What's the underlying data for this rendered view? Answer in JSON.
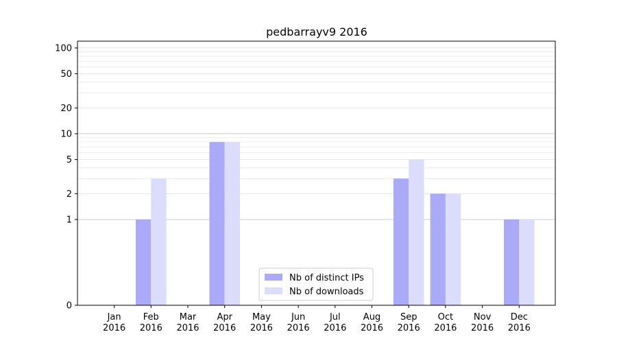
{
  "chart_data": {
    "type": "bar",
    "title": "pedbarrayv9 2016",
    "xlabel": "",
    "ylabel": "",
    "categories": [
      {
        "month": "Jan",
        "year": "2016"
      },
      {
        "month": "Feb",
        "year": "2016"
      },
      {
        "month": "Mar",
        "year": "2016"
      },
      {
        "month": "Apr",
        "year": "2016"
      },
      {
        "month": "May",
        "year": "2016"
      },
      {
        "month": "Jun",
        "year": "2016"
      },
      {
        "month": "Jul",
        "year": "2016"
      },
      {
        "month": "Aug",
        "year": "2016"
      },
      {
        "month": "Sep",
        "year": "2016"
      },
      {
        "month": "Oct",
        "year": "2016"
      },
      {
        "month": "Nov",
        "year": "2016"
      },
      {
        "month": "Dec",
        "year": "2016"
      }
    ],
    "series": [
      {
        "name": "Nb of distinct IPs",
        "color": "#aaaaf8",
        "values": [
          0,
          1,
          0,
          8,
          0,
          0,
          0,
          0,
          3,
          2,
          0,
          1
        ]
      },
      {
        "name": "Nb of downloads",
        "color": "#dcdcfc",
        "values": [
          0,
          3,
          0,
          8,
          0,
          0,
          0,
          0,
          5,
          2,
          0,
          1
        ]
      }
    ],
    "yscale": "symlog",
    "yticks": [
      "0",
      "1",
      "2",
      "5",
      "10",
      "20",
      "50",
      "100"
    ],
    "ylim": [
      0,
      120
    ],
    "grid": true,
    "legend_position": "lower center"
  }
}
